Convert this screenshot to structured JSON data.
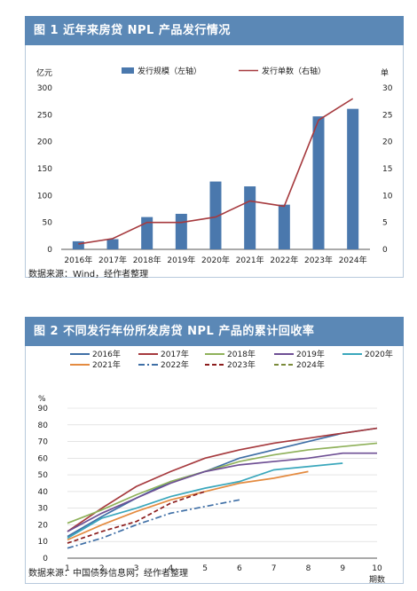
{
  "figure1": {
    "title": "图 1   近年来房贷 NPL 产品发行情况",
    "source": "数据来源：Wind，经作者整理",
    "chart_data": {
      "type": "bar",
      "categories": [
        "2016年",
        "2017年",
        "2018年",
        "2019年",
        "2020年",
        "2021年",
        "2022年",
        "2023年",
        "2024年"
      ],
      "left_unit": "亿元",
      "right_unit": "单",
      "ylim": [
        0,
        300
      ],
      "y2lim": [
        0,
        30
      ],
      "yticks": [
        "0",
        "50",
        "100",
        "150",
        "200",
        "250",
        "300"
      ],
      "y2ticks": [
        "0",
        "5",
        "10",
        "15",
        "20",
        "25",
        "30"
      ],
      "legend": [
        "发行规模（左轴）",
        "发行单数（右轴）"
      ],
      "colors": {
        "bar": "#4a78ad",
        "line": "#a63a3e"
      },
      "series": [
        {
          "name": "发行规模（左轴）",
          "axis": "left",
          "type": "bar",
          "values": [
            15,
            19,
            60,
            66,
            126,
            117,
            83,
            247,
            261
          ]
        },
        {
          "name": "发行单数（右轴）",
          "axis": "right",
          "type": "line",
          "values": [
            1,
            2,
            5,
            5,
            6,
            9,
            8,
            24,
            28
          ]
        }
      ]
    }
  },
  "figure2": {
    "title": "图 2   不同发行年份所发房贷 NPL 产品的累计回收率",
    "source": "数据来源：中国债券信息网，经作者整理",
    "chart_data": {
      "type": "line",
      "x": [
        1,
        2,
        3,
        4,
        5,
        6,
        7,
        8,
        9,
        10
      ],
      "xticks": [
        "1",
        "2",
        "3",
        "4",
        "5",
        "6",
        "7",
        "8",
        "9",
        "10"
      ],
      "x_unit": "期数",
      "y_unit": "%",
      "ylim": [
        0,
        90
      ],
      "yticks": [
        "0",
        "10",
        "20",
        "30",
        "40",
        "50",
        "60",
        "70",
        "80",
        "90"
      ],
      "series": [
        {
          "name": "2016年",
          "color": "#3f6fa6",
          "dash": "solid",
          "values": [
            13,
            25,
            36,
            46,
            52,
            60,
            65,
            70,
            75,
            78
          ]
        },
        {
          "name": "2017年",
          "color": "#a63a3e",
          "dash": "solid",
          "values": [
            16,
            30,
            43,
            52,
            60,
            65,
            69,
            72,
            75,
            78
          ]
        },
        {
          "name": "2018年",
          "color": "#8fb15a",
          "dash": "solid",
          "values": [
            21,
            29,
            38,
            46,
            52,
            58,
            62,
            65,
            67,
            69
          ]
        },
        {
          "name": "2019年",
          "color": "#6e4f94",
          "dash": "solid",
          "values": [
            16,
            27,
            36,
            45,
            52,
            56,
            58,
            60,
            63,
            63
          ]
        },
        {
          "name": "2020年",
          "color": "#3aa7bc",
          "dash": "solid",
          "values": [
            12,
            24,
            30,
            37,
            42,
            46,
            53,
            55,
            57,
            null
          ]
        },
        {
          "name": "2021年",
          "color": "#e48b40",
          "dash": "solid",
          "values": [
            11,
            20,
            28,
            35,
            40,
            45,
            48,
            52,
            null,
            null
          ]
        },
        {
          "name": "2022年",
          "color": "#3f6fa6",
          "dash": "dashdot",
          "values": [
            6,
            12,
            20,
            27,
            31,
            35,
            null,
            null,
            null,
            null
          ]
        },
        {
          "name": "2023年",
          "color": "#8c1d1d",
          "dash": "dash",
          "values": [
            9,
            16,
            22,
            33,
            40,
            null,
            null,
            null,
            null,
            null
          ]
        },
        {
          "name": "2024年",
          "color": "#7a8a3a",
          "dash": "dash",
          "values": [
            6,
            null,
            null,
            null,
            null,
            null,
            null,
            null,
            null,
            null
          ]
        }
      ]
    }
  }
}
